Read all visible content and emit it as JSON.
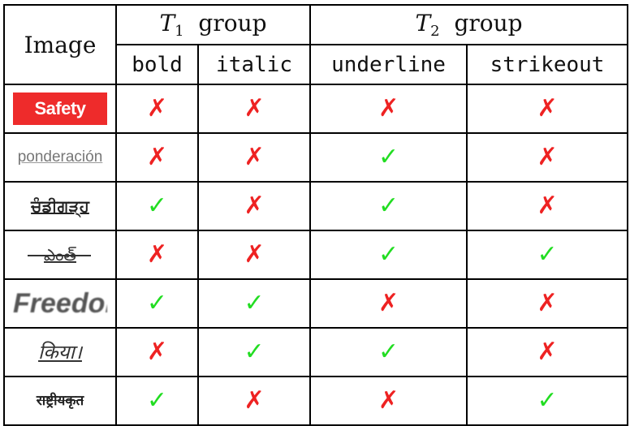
{
  "header": {
    "image_col": "Image",
    "group1": {
      "symbol": "T",
      "sub": "1",
      "text": "group"
    },
    "group2": {
      "symbol": "T",
      "sub": "2",
      "text": "group"
    },
    "columns": [
      "bold",
      "italic",
      "underline",
      "strikeout"
    ]
  },
  "marks": {
    "yes": "✓",
    "no": "✗"
  },
  "rows": [
    {
      "image_text": "Safety",
      "bold": "✗",
      "italic": "✗",
      "underline": "✗",
      "strikeout": "✗"
    },
    {
      "image_text": "ponderación",
      "bold": "✗",
      "italic": "✗",
      "underline": "✓",
      "strikeout": "✗"
    },
    {
      "image_text": "ਚੰਡੀਗੜ੍ਹ",
      "bold": "✓",
      "italic": "✗",
      "underline": "✓",
      "strikeout": "✗"
    },
    {
      "image_text": "ఎంత్",
      "bold": "✗",
      "italic": "✗",
      "underline": "✓",
      "strikeout": "✓"
    },
    {
      "image_text": "Freedom",
      "bold": "✓",
      "italic": "✓",
      "underline": "✗",
      "strikeout": "✗"
    },
    {
      "image_text": "किया।",
      "bold": "✗",
      "italic": "✓",
      "underline": "✓",
      "strikeout": "✗"
    },
    {
      "image_text": "राष्ट्रीयकृत",
      "bold": "✓",
      "italic": "✗",
      "underline": "✗",
      "strikeout": "✓"
    }
  ],
  "colors": {
    "yes": "#22dd22",
    "no": "#ee2222",
    "border": "#000000"
  }
}
